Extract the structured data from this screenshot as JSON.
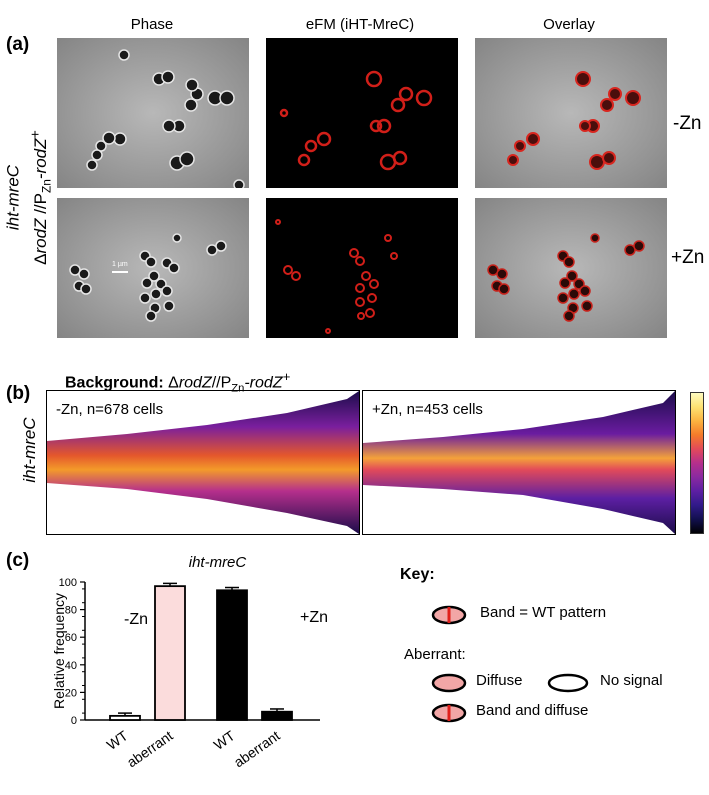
{
  "panel_a": {
    "label": "(a)",
    "columns": [
      "Phase",
      "eFM (iHT-MreC)",
      "Overlay"
    ],
    "row_labels": [
      "-Zn",
      "+Zn"
    ],
    "side_label_line1": "iht-mreC",
    "side_label_line2_prefix": "Δ",
    "side_label_line2_gene": "rodZ",
    "side_label_line2_mid": " //P",
    "side_label_line2_sub": "Zn",
    "side_label_line2_end": "-rodZ",
    "side_label_line2_sup": "+",
    "scale_bar": "1 µm"
  },
  "panel_b": {
    "label": "(b)",
    "background_bold": "Background:",
    "background_delta": " Δ",
    "background_gene": "rodZ",
    "background_mid": "//P",
    "background_sub": "Zn",
    "background_end": "-rodZ",
    "background_sup": "+",
    "ylabel": "iht-mreC",
    "kymo_left": "-Zn, n=678 cells",
    "kymo_right": "+Zn, n=453 cells",
    "colorbar": [
      "#fdfbc0",
      "#fde172",
      "#fbb340",
      "#f47b2a",
      "#e24a5a",
      "#b52f8c",
      "#8a2aa0",
      "#5d1fa3",
      "#311a8a",
      "#12104f",
      "#000004"
    ]
  },
  "panel_c": {
    "label": "(c)",
    "title": "iht-mreC",
    "ylabel": "Relative frequency",
    "chart_data": {
      "type": "bar",
      "title": "iht-mreC",
      "ylabel": "Relative frequency",
      "ylim": [
        0,
        100
      ],
      "yticks": [
        0,
        20,
        40,
        60,
        80,
        100
      ],
      "groups": [
        {
          "label": "-Zn",
          "categories": [
            "WT",
            "aberrant"
          ],
          "values": [
            3,
            97
          ],
          "errors": [
            2,
            2
          ],
          "colors": [
            "#ffffff",
            "#fbdcdc"
          ]
        },
        {
          "label": "+Zn",
          "categories": [
            "WT",
            "aberrant"
          ],
          "values": [
            94,
            6
          ],
          "errors": [
            2,
            2
          ],
          "colors": [
            "#000000",
            "#000000"
          ]
        }
      ]
    }
  },
  "key": {
    "title": "Key:",
    "band": "Band = WT pattern",
    "aberrant": "Aberrant:",
    "diffuse": "Diffuse",
    "no_signal": "No signal",
    "band_diffuse": "Band and diffuse",
    "fill_pink": "#f2a6a6",
    "band_red": "#e0201b"
  }
}
